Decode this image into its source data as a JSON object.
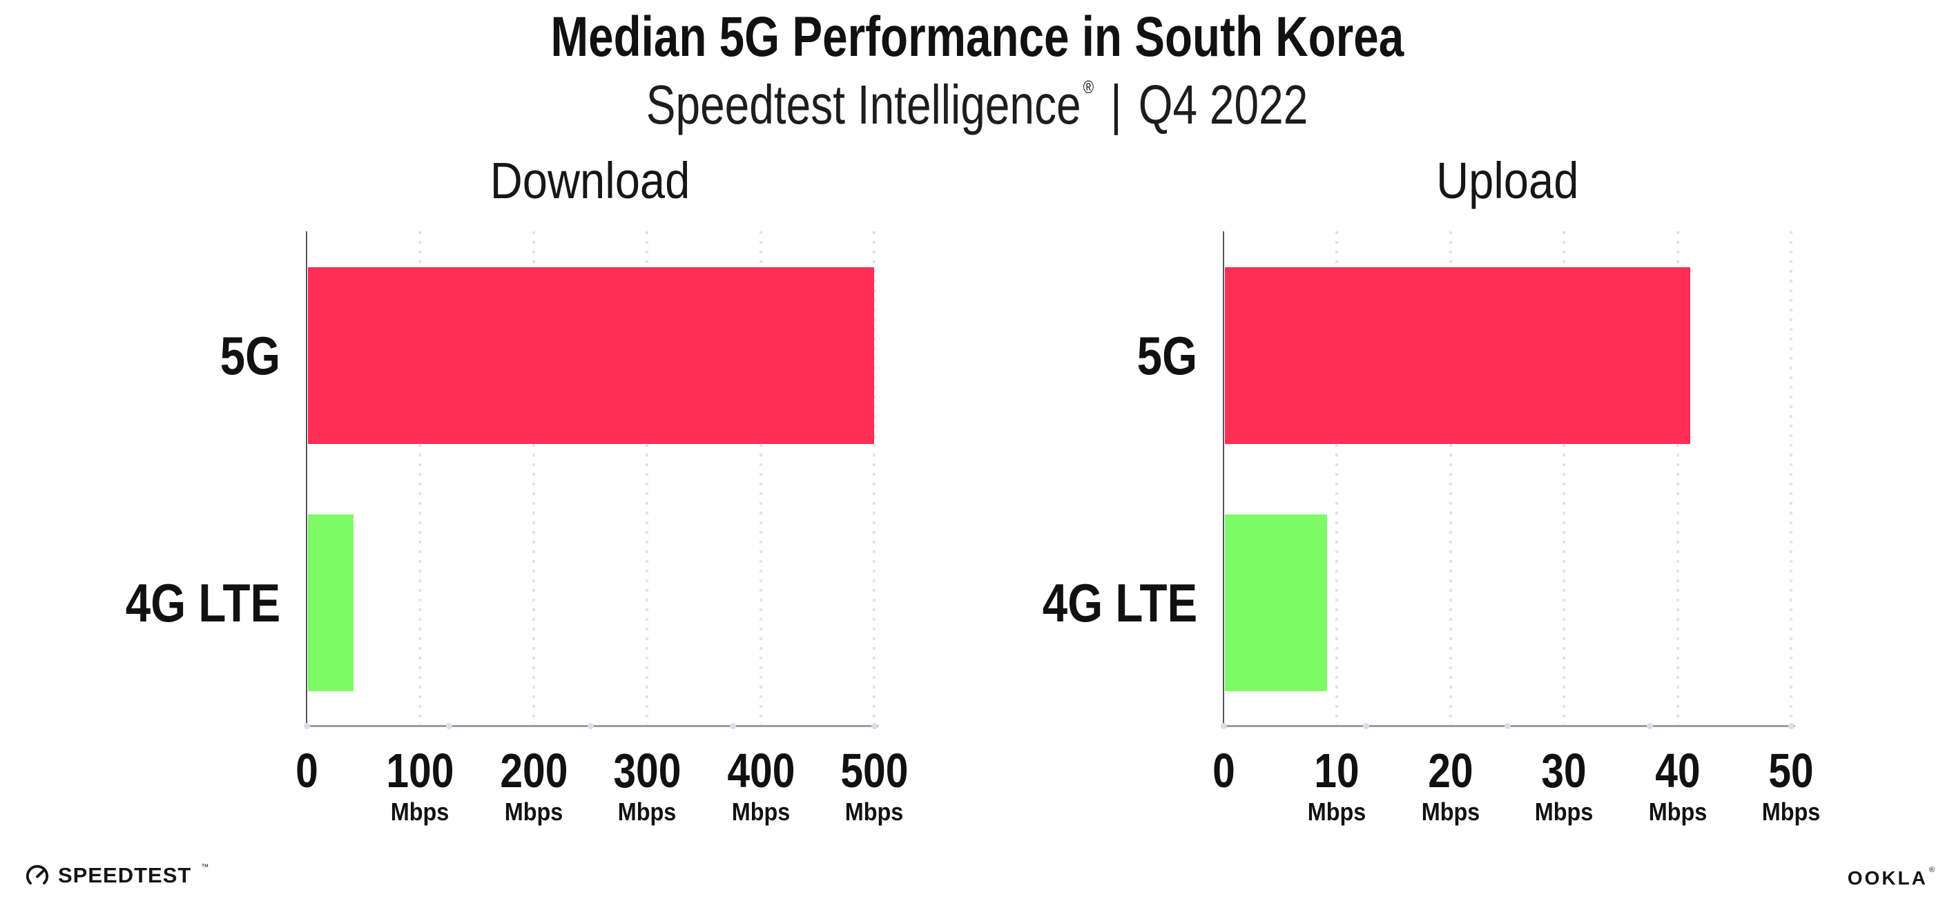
{
  "header": {
    "title": "Median 5G Performance in South Korea",
    "subtitle_brand": "Speedtest Intelligence",
    "subtitle_reg": "®",
    "subtitle_divider": "|",
    "subtitle_period": "Q4 2022"
  },
  "colors": {
    "bar_5g": "#ff2e56",
    "bar_4g_lte": "#7efb67",
    "gridline": "#e3e3f0",
    "x_axis_line": "#9b9ba3",
    "y_axis_line": "#55555e",
    "text": "#111111",
    "background": "#ffffff"
  },
  "chart_data": [
    {
      "type": "bar",
      "orientation": "horizontal",
      "title": "Download",
      "categories": [
        "5G",
        "4G LTE"
      ],
      "values": [
        499,
        40
      ],
      "unit": "Mbps",
      "xlim": [
        0,
        500
      ],
      "xticks": [
        0,
        100,
        200,
        300,
        400,
        500
      ],
      "bar_colors": [
        "#ff2e56",
        "#7efb67"
      ],
      "grid": "dotted-vertical",
      "legend": "none"
    },
    {
      "type": "bar",
      "orientation": "horizontal",
      "title": "Upload",
      "categories": [
        "5G",
        "4G LTE"
      ],
      "values": [
        41,
        9
      ],
      "unit": "Mbps",
      "xlim": [
        0,
        50
      ],
      "xticks": [
        0,
        10,
        20,
        30,
        40,
        50
      ],
      "bar_colors": [
        "#ff2e56",
        "#7efb67"
      ],
      "grid": "dotted-vertical",
      "legend": "none"
    }
  ],
  "footer": {
    "speedtest_label": "SPEEDTEST",
    "speedtest_tm": "™",
    "ookla_label": "OOKLA",
    "ookla_reg": "®"
  }
}
